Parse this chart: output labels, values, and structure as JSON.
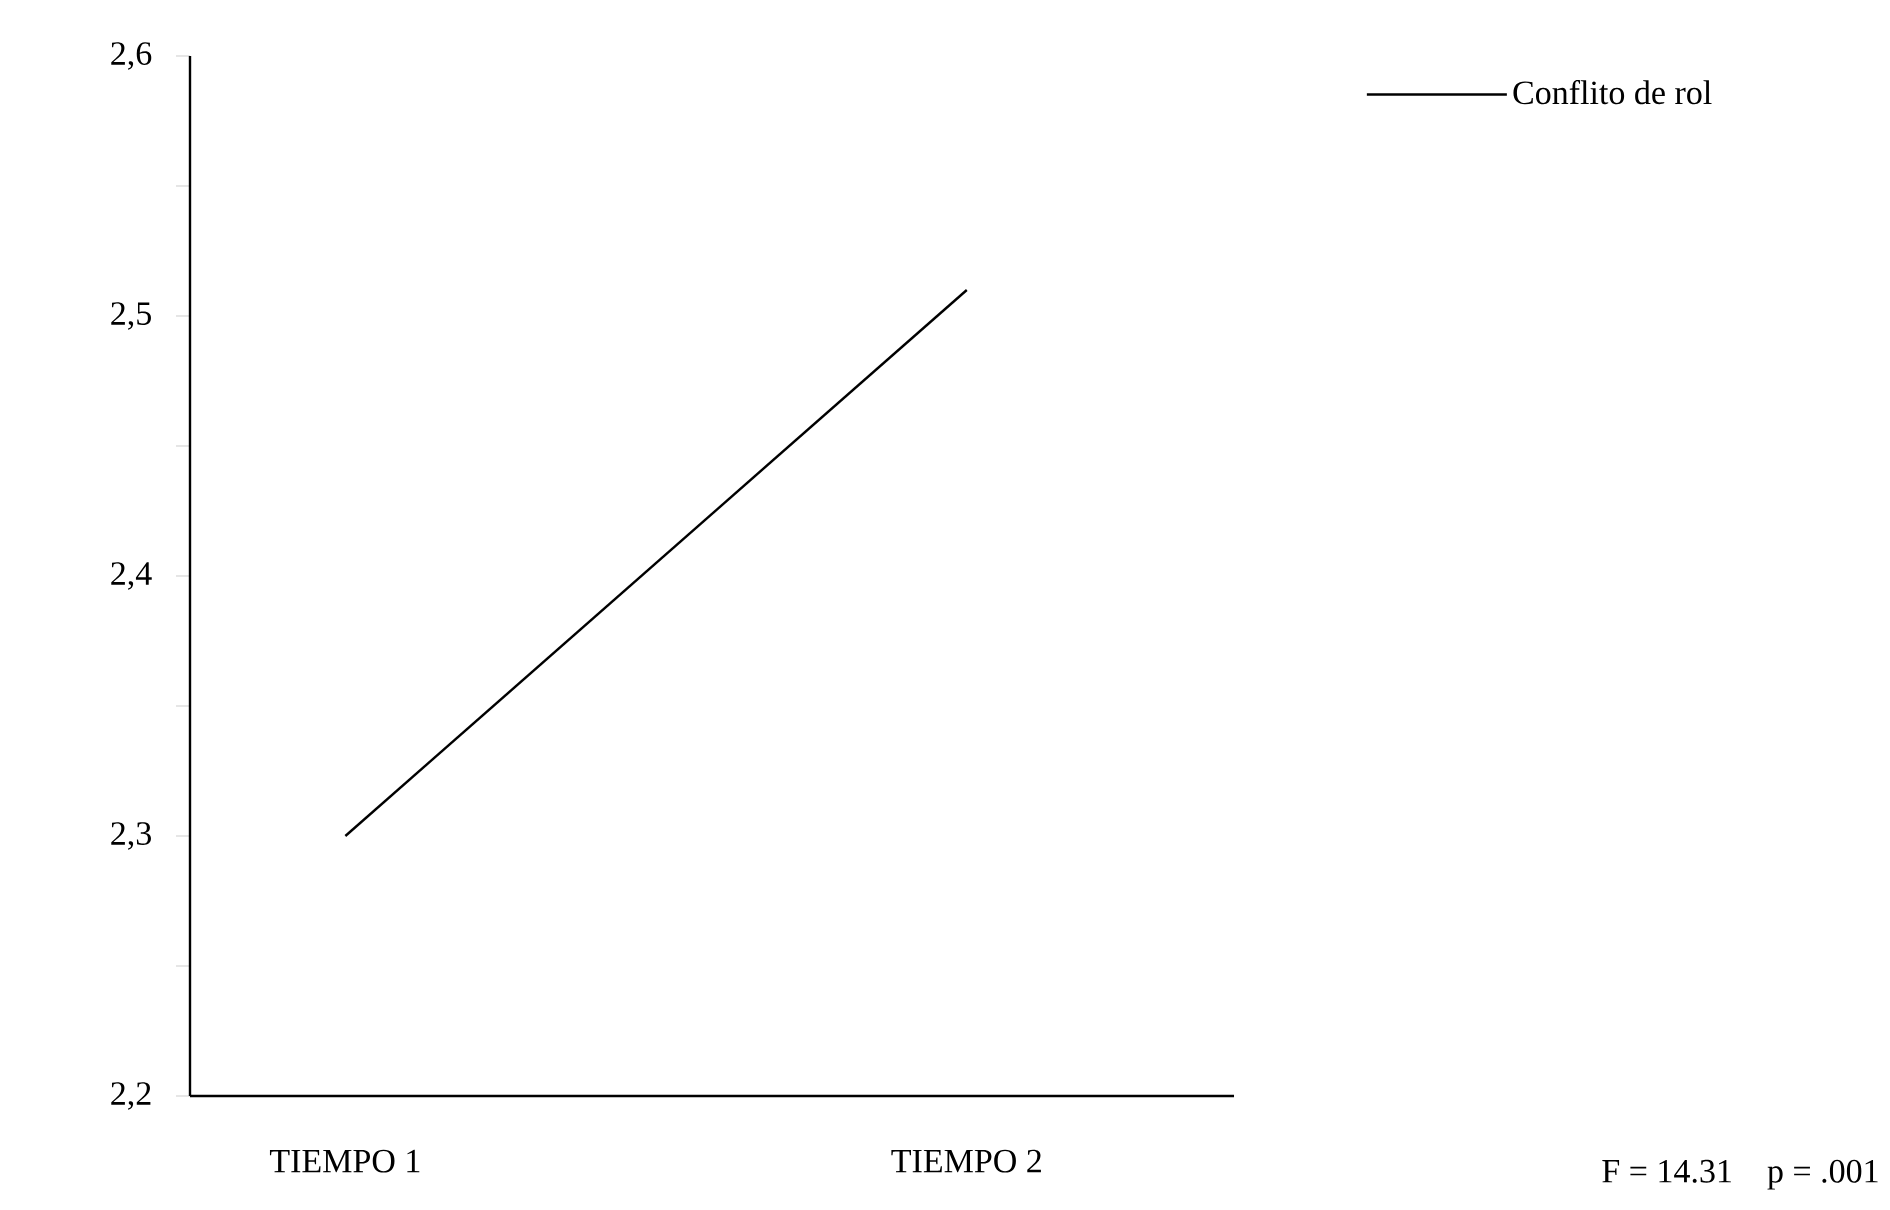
{
  "chart_data": {
    "type": "line",
    "categories": [
      "TIEMPO 1",
      "TIEMPO 2"
    ],
    "series": [
      {
        "name": "Conflito de rol",
        "color": "#000000",
        "values": [
          2.3,
          2.51
        ]
      }
    ],
    "ylim": [
      2.2,
      2.6
    ],
    "yticks": [
      {
        "value": 2.2,
        "label": "2,2"
      },
      {
        "value": 2.25,
        "label": null
      },
      {
        "value": 2.3,
        "label": "2,3"
      },
      {
        "value": 2.35,
        "label": null
      },
      {
        "value": 2.4,
        "label": "2,4"
      },
      {
        "value": 2.45,
        "label": null
      },
      {
        "value": 2.5,
        "label": "2,5"
      },
      {
        "value": 2.55,
        "label": null
      },
      {
        "value": 2.6,
        "label": "2,6"
      }
    ],
    "legend": "top right",
    "marker": "none",
    "line_style": "solid",
    "grid": false,
    "annotations": [
      "F = 14.31    p = .001"
    ]
  }
}
